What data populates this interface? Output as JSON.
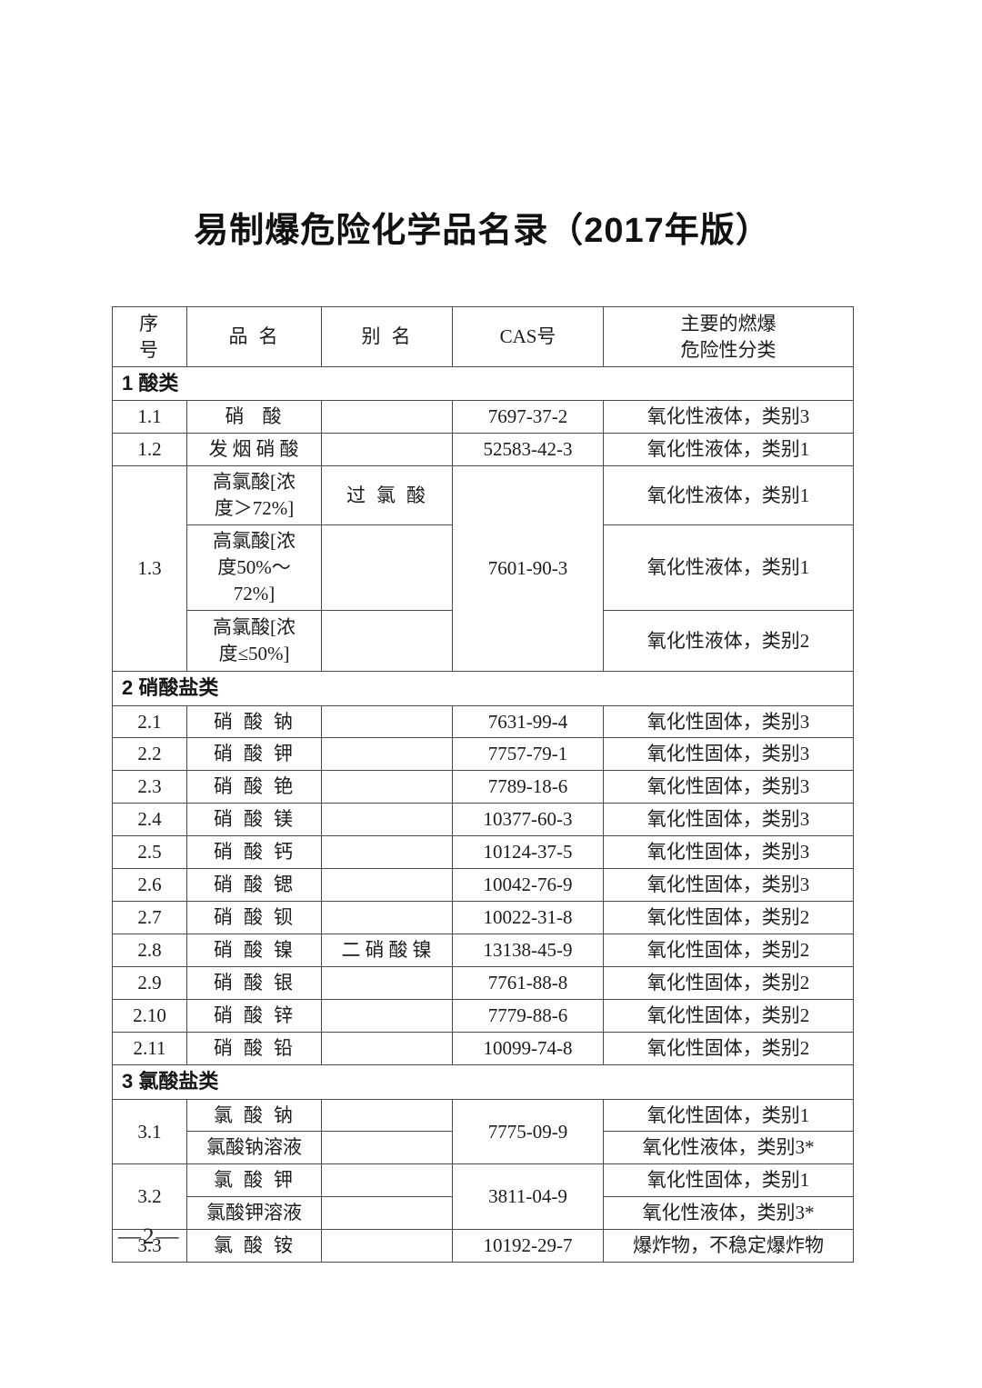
{
  "doc": {
    "title": "易制爆危险化学品名录（2017年版）",
    "page_number": "—2—"
  },
  "table": {
    "header": {
      "no": "序号",
      "name": "品名",
      "alias": "别名",
      "cas": "CAS号",
      "hazard": "主要的燃爆\n危险性分类"
    },
    "section1": {
      "label": "1 酸类"
    },
    "rows1": [
      {
        "no": "1.1",
        "name": "硝酸",
        "alias": "",
        "cas": "7697-37-2",
        "hazard": "氧化性液体，类别3"
      },
      {
        "no": "1.2",
        "name": "发烟硝酸",
        "alias": "",
        "cas": "52583-42-3",
        "hazard": "氧化性液体，类别1"
      }
    ],
    "group13": {
      "no": "1.3",
      "cas": "7601-90-3",
      "sub": [
        {
          "name": "高氯酸[浓\n度＞72%]",
          "alias": "过氯酸",
          "hazard": "氧化性液体，类别1"
        },
        {
          "name": "高氯酸[浓\n度50%～\n72%]",
          "alias": "",
          "hazard": "氧化性液体，类别1"
        },
        {
          "name": "高氯酸[浓\n度≤50%]",
          "alias": "",
          "hazard": "氧化性液体，类别2"
        }
      ]
    },
    "section2": {
      "label": "2 硝酸盐类"
    },
    "rows2": [
      {
        "no": "2.1",
        "name": "硝酸钠",
        "alias": "",
        "cas": "7631-99-4",
        "hazard": "氧化性固体，类别3"
      },
      {
        "no": "2.2",
        "name": "硝酸钾",
        "alias": "",
        "cas": "7757-79-1",
        "hazard": "氧化性固体，类别3"
      },
      {
        "no": "2.3",
        "name": "硝酸铯",
        "alias": "",
        "cas": "7789-18-6",
        "hazard": "氧化性固体，类别3"
      },
      {
        "no": "2.4",
        "name": "硝酸镁",
        "alias": "",
        "cas": "10377-60-3",
        "hazard": "氧化性固体，类别3"
      },
      {
        "no": "2.5",
        "name": "硝酸钙",
        "alias": "",
        "cas": "10124-37-5",
        "hazard": "氧化性固体，类别3"
      },
      {
        "no": "2.6",
        "name": "硝酸锶",
        "alias": "",
        "cas": "10042-76-9",
        "hazard": "氧化性固体，类别3"
      },
      {
        "no": "2.7",
        "name": "硝酸钡",
        "alias": "",
        "cas": "10022-31-8",
        "hazard": "氧化性固体，类别2"
      },
      {
        "no": "2.8",
        "name": "硝酸镍",
        "alias": "二硝酸镍",
        "cas": "13138-45-9",
        "hazard": "氧化性固体，类别2"
      },
      {
        "no": "2.9",
        "name": "硝酸银",
        "alias": "",
        "cas": "7761-88-8",
        "hazard": "氧化性固体，类别2"
      },
      {
        "no": "2.10",
        "name": "硝酸锌",
        "alias": "",
        "cas": "7779-88-6",
        "hazard": "氧化性固体，类别2"
      },
      {
        "no": "2.11",
        "name": "硝酸铅",
        "alias": "",
        "cas": "10099-74-8",
        "hazard": "氧化性固体，类别2"
      }
    ],
    "section3": {
      "label": "3 氯酸盐类"
    },
    "group31": {
      "no": "3.1",
      "cas": "7775-09-9",
      "sub": [
        {
          "name": "氯酸钠",
          "alias": "",
          "hazard": "氧化性固体，类别1"
        },
        {
          "name": "氯酸钠溶液",
          "alias": "",
          "hazard": "氧化性液体，类别3*"
        }
      ]
    },
    "group32": {
      "no": "3.2",
      "cas": "3811-04-9",
      "sub": [
        {
          "name": "氯酸钾",
          "alias": "",
          "hazard": "氧化性固体，类别1"
        },
        {
          "name": "氯酸钾溶液",
          "alias": "",
          "hazard": "氧化性液体，类别3*"
        }
      ]
    },
    "rows3": [
      {
        "no": "3.3",
        "name": "氯酸铵",
        "alias": "",
        "cas": "10192-29-7",
        "hazard": "爆炸物，不稳定爆炸物"
      }
    ]
  }
}
